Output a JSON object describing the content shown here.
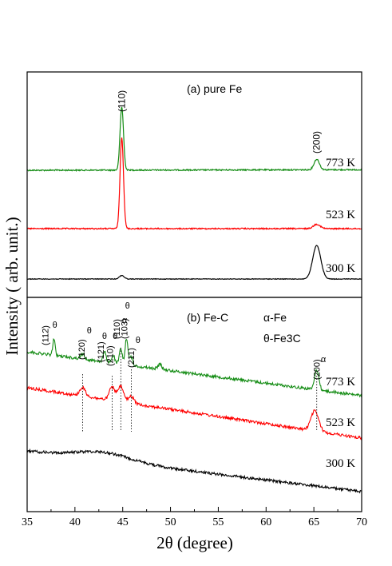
{
  "chart_data": [
    {
      "type": "line",
      "title": "(a) pure Fe",
      "xlabel": "2θ (degree)",
      "ylabel": "Intensity ( arb. unit.)",
      "xlim": [
        35,
        70
      ],
      "x_ticks": [
        35,
        40,
        45,
        50,
        55,
        60,
        65,
        70
      ],
      "grid": false,
      "series": [
        {
          "name": "773 K",
          "color": "#148c14",
          "peaks": [
            {
              "x": 44.9,
              "height": 0.36,
              "width": 0.18
            },
            {
              "x": 65.3,
              "height": 0.06,
              "width": 0.28
            }
          ]
        },
        {
          "name": "523 K",
          "color": "#ff0000",
          "peaks": [
            {
              "x": 44.9,
              "height": 0.52,
              "width": 0.18
            },
            {
              "x": 65.3,
              "height": 0.025,
              "width": 0.35
            }
          ]
        },
        {
          "name": "300 K",
          "color": "#000000",
          "peaks": [
            {
              "x": 44.9,
              "height": 0.02,
              "width": 0.25
            },
            {
              "x": 65.3,
              "height": 0.19,
              "width": 0.42
            }
          ]
        }
      ],
      "annotations": [
        {
          "text": "(110)",
          "x": 44.9
        },
        {
          "text": "(200)",
          "x": 65.3
        }
      ]
    },
    {
      "type": "line",
      "title": "(b) Fe-C",
      "xlabel": "2θ (degree)",
      "ylabel": "Intensity ( arb. unit.)",
      "xlim": [
        35,
        70
      ],
      "x_ticks": [
        35,
        40,
        45,
        50,
        55,
        60,
        65,
        70
      ],
      "grid": false,
      "legend": [
        "α-Fe",
        "θ-Fe3C"
      ],
      "series": [
        {
          "name": "773 K",
          "color": "#148c14",
          "peaks": [
            {
              "x": 37.8,
              "height": 0.1,
              "width": 0.12
            },
            {
              "x": 40.8,
              "height": 0.03,
              "width": 0.2
            },
            {
              "x": 43.1,
              "height": 0.06,
              "width": 0.15
            },
            {
              "x": 44.0,
              "height": 0.05,
              "width": 0.15
            },
            {
              "x": 44.8,
              "height": 0.09,
              "width": 0.15
            },
            {
              "x": 45.4,
              "height": 0.16,
              "width": 0.15
            },
            {
              "x": 45.9,
              "height": 0.05,
              "width": 0.15
            },
            {
              "x": 48.9,
              "height": 0.03,
              "width": 0.2
            },
            {
              "x": 65.3,
              "height": 0.12,
              "width": 0.22
            }
          ]
        },
        {
          "name": "523 K",
          "color": "#ff0000",
          "peaks": [
            {
              "x": 40.8,
              "height": 0.05,
              "width": 0.3
            },
            {
              "x": 43.9,
              "height": 0.08,
              "width": 0.3
            },
            {
              "x": 44.8,
              "height": 0.09,
              "width": 0.3
            },
            {
              "x": 45.9,
              "height": 0.04,
              "width": 0.3
            },
            {
              "x": 65.1,
              "height": 0.12,
              "width": 0.4
            }
          ]
        },
        {
          "name": "300 K",
          "color": "#000000",
          "peaks": []
        }
      ],
      "annotations": [
        {
          "text": "(112)",
          "x": 37.8,
          "phase": "θ"
        },
        {
          "text": "(120)",
          "x": 40.8,
          "phase": "θ"
        },
        {
          "text": "(121)",
          "x": 43.1,
          "phase": "θ"
        },
        {
          "text": "(210)",
          "x": 44.0,
          "phase": "θ"
        },
        {
          "text": "(110)",
          "x": 44.8,
          "phase": "α"
        },
        {
          "text": "(103)",
          "x": 45.4,
          "phase": "θ"
        },
        {
          "text": "(211)",
          "x": 45.9,
          "phase": "θ"
        },
        {
          "text": "(200)",
          "x": 65.3,
          "phase": "α"
        }
      ]
    }
  ]
}
